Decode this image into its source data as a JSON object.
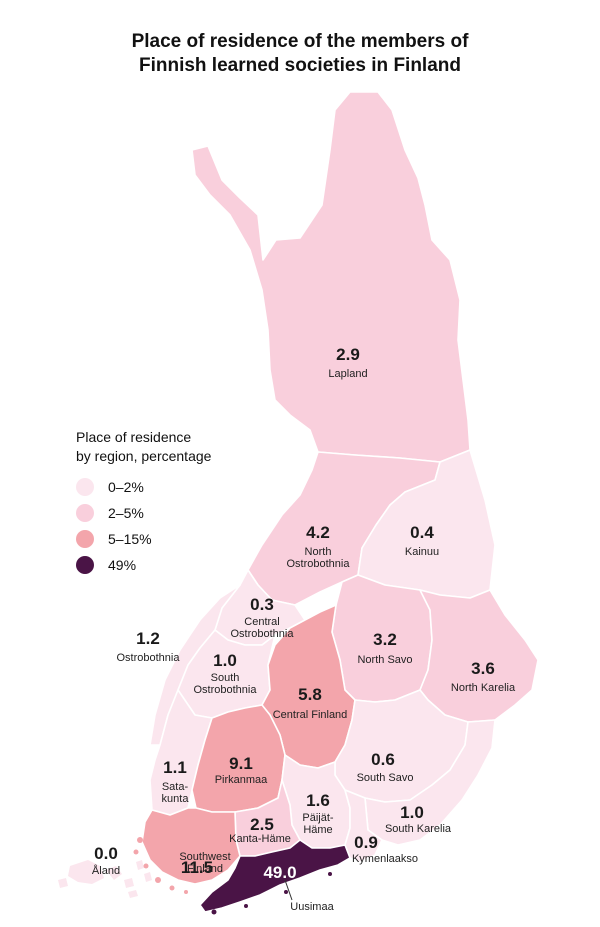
{
  "title": {
    "line1": "Place of residence of the members of",
    "line2": "Finnish learned societies in Finland"
  },
  "legend": {
    "title_line1": "Place of residence",
    "title_line2": "by region, percentage",
    "items": [
      {
        "label": "0–2%",
        "color": "#fbe6ee"
      },
      {
        "label": "2–5%",
        "color": "#f9cfdc"
      },
      {
        "label": "5–15%",
        "color": "#f3a5ab"
      },
      {
        "label": "49%",
        "color": "#4a1446"
      }
    ]
  },
  "regions": [
    {
      "name": "Lapland",
      "value": "2.9",
      "color": "#f9cfdc"
    },
    {
      "name": "North Ostrobothnia",
      "name_line1": "North",
      "name_line2": "Ostrobothnia",
      "value": "4.2",
      "color": "#f9cfdc"
    },
    {
      "name": "Kainuu",
      "value": "0.4",
      "color": "#fbe6ee"
    },
    {
      "name": "Central Ostrobothnia",
      "name_line1": "Central",
      "name_line2": "Ostrobothnia",
      "value": "0.3",
      "color": "#fbe6ee"
    },
    {
      "name": "Ostrobothnia",
      "value": "1.2",
      "color": "#fbe6ee"
    },
    {
      "name": "South Ostrobothnia",
      "name_line1": "South",
      "name_line2": "Ostrobothnia",
      "value": "1.0",
      "color": "#fbe6ee"
    },
    {
      "name": "North Savo",
      "value": "3.2",
      "color": "#f9cfdc"
    },
    {
      "name": "North Karelia",
      "value": "3.6",
      "color": "#f9cfdc"
    },
    {
      "name": "Central Finland",
      "value": "5.8",
      "color": "#f3a5ab"
    },
    {
      "name": "Satakunta",
      "name_line1": "Sata-",
      "name_line2": "kunta",
      "value": "1.1",
      "color": "#fbe6ee"
    },
    {
      "name": "Pirkanmaa",
      "value": "9.1",
      "color": "#f3a5ab"
    },
    {
      "name": "South Savo",
      "value": "0.6",
      "color": "#fbe6ee"
    },
    {
      "name": "Päijät-Häme",
      "name_line1": "Päijät-",
      "name_line2": "Häme",
      "value": "1.6",
      "color": "#fbe6ee"
    },
    {
      "name": "Kanta-Häme",
      "value": "2.5",
      "color": "#f9cfdc"
    },
    {
      "name": "South Karelia",
      "value": "1.0",
      "color": "#fbe6ee"
    },
    {
      "name": "Kymenlaakso",
      "value": "0.9",
      "color": "#fbe6ee"
    },
    {
      "name": "Southwest Finland",
      "name_line1": "Southwest",
      "name_line2": "Finland",
      "value": "11.5",
      "color": "#f3a5ab"
    },
    {
      "name": "Uusimaa",
      "value": "49.0",
      "color": "#4a1446"
    },
    {
      "name": "Åland",
      "value": "0.0",
      "color": "#fbe6ee"
    }
  ]
}
